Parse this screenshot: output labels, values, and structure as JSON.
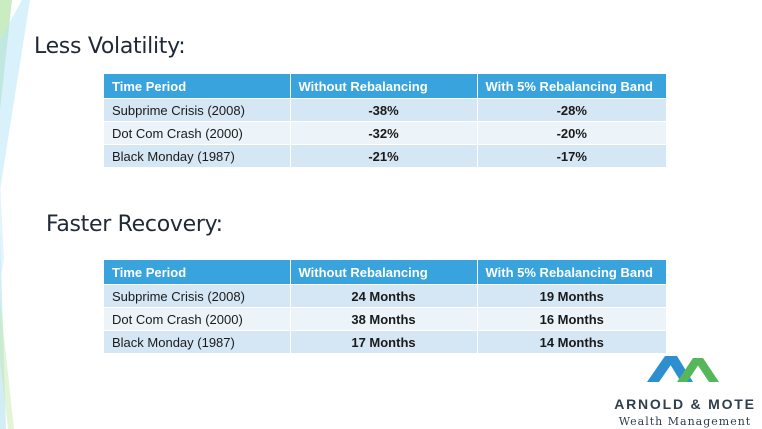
{
  "sections": [
    {
      "heading": "Less Volatility:",
      "table": {
        "headers": [
          "Time Period",
          "Without Rebalancing",
          "With 5% Rebalancing Band"
        ],
        "rows": [
          [
            "Subprime Crisis (2008)",
            "-38%",
            "-28%"
          ],
          [
            "Dot Com Crash (2000)",
            "-32%",
            "-20%"
          ],
          [
            "Black Monday (1987)",
            "-21%",
            "-17%"
          ]
        ]
      }
    },
    {
      "heading": "Faster Recovery:",
      "table": {
        "headers": [
          "Time Period",
          "Without Rebalancing",
          "With 5% Rebalancing Band"
        ],
        "rows": [
          [
            "Subprime Crisis (2008)",
            "24 Months",
            "19 Months"
          ],
          [
            "Dot Com Crash (2000)",
            "38 Months",
            "16 Months"
          ],
          [
            "Black Monday (1987)",
            "17 Months",
            "14 Months"
          ]
        ]
      }
    }
  ],
  "logo": {
    "name": "ARNOLD & MOTE",
    "subtitle": "Wealth Management",
    "icon": "mountain-chevrons-icon"
  },
  "colors": {
    "header_bg": "#38a3dc",
    "row_dark": "#d5e7f4",
    "row_light": "#ecf4fa",
    "logo_blue": "#2d8fd0",
    "logo_green": "#55b65a",
    "accent_green": "#7fd37d"
  }
}
